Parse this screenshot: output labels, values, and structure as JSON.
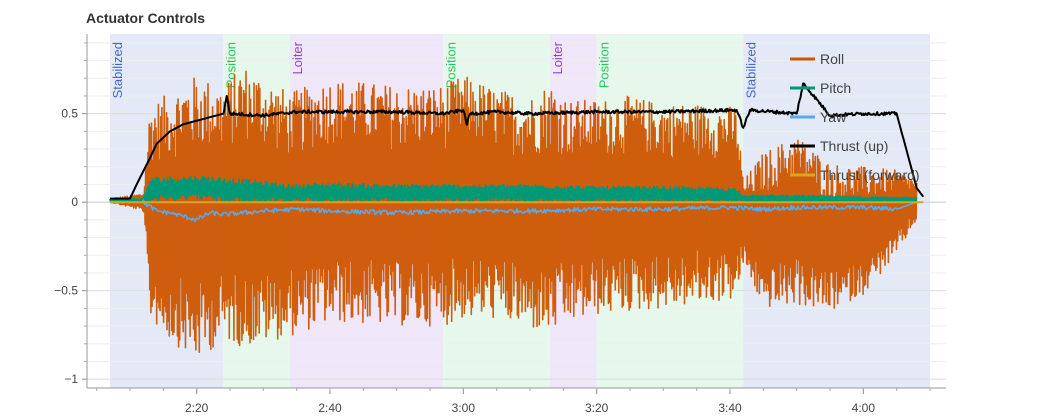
{
  "chart_data": {
    "type": "line",
    "title": "Actuator Controls",
    "xlabel": "",
    "ylabel": "",
    "x_unit": "m:ss",
    "xlim": [
      "2:07",
      "4:10"
    ],
    "ylim": [
      -1.05,
      0.95
    ],
    "x_ticks": [
      "2:20",
      "2:40",
      "3:00",
      "3:20",
      "3:40",
      "4:00"
    ],
    "y_ticks": [
      {
        "value": 0.5,
        "label": "0.5"
      },
      {
        "value": 0,
        "label": "0"
      },
      {
        "value": -0.5,
        "label": "−0.5"
      },
      {
        "value": -1,
        "label": "−1"
      }
    ],
    "grid": true,
    "legend_position": "top-right",
    "flight_modes": [
      {
        "name": "Stabilized",
        "start": "2:07",
        "end": "2:24",
        "color": "#4466cc",
        "fill": "#e3e9f7"
      },
      {
        "name": "Position",
        "start": "2:24",
        "end": "2:34",
        "color": "#22cc55",
        "fill": "#e6f8ec"
      },
      {
        "name": "Loiter",
        "start": "2:34",
        "end": "2:57",
        "color": "#8844cc",
        "fill": "#efe6fa"
      },
      {
        "name": "Position",
        "start": "2:57",
        "end": "3:13",
        "color": "#22cc55",
        "fill": "#e6f8ec"
      },
      {
        "name": "Loiter",
        "start": "3:13",
        "end": "3:20",
        "color": "#8844cc",
        "fill": "#efe6fa"
      },
      {
        "name": "Position",
        "start": "3:20",
        "end": "3:42",
        "color": "#22cc55",
        "fill": "#e6f8ec"
      },
      {
        "name": "Stabilized",
        "start": "3:42",
        "end": "4:10",
        "color": "#4466cc",
        "fill": "#e3e9f7"
      }
    ],
    "series": [
      {
        "name": "Roll",
        "color": "#cc5500",
        "x": [
          "2:07",
          "2:12",
          "2:13",
          "2:16",
          "2:20",
          "2:24",
          "2:27",
          "2:34",
          "2:40",
          "2:50",
          "2:57",
          "3:00",
          "3:05",
          "3:10",
          "3:13",
          "3:16",
          "3:20",
          "3:25",
          "3:30",
          "3:35",
          "3:41",
          "3:42",
          "3:45",
          "3:50",
          "3:55",
          "4:00",
          "4:05",
          "4:08"
        ],
        "y_upper": [
          0.02,
          0.05,
          0.55,
          0.62,
          0.72,
          0.66,
          0.78,
          0.62,
          0.7,
          0.66,
          0.66,
          0.72,
          0.64,
          0.6,
          0.68,
          0.58,
          0.58,
          0.6,
          0.56,
          0.56,
          0.54,
          0.12,
          0.28,
          0.38,
          0.22,
          0.2,
          0.18,
          0.12
        ],
        "y_lower": [
          0.0,
          -0.05,
          -0.66,
          -0.78,
          -0.9,
          -0.78,
          -0.82,
          -0.76,
          -0.68,
          -0.7,
          -0.7,
          -0.66,
          -0.66,
          -0.72,
          -0.74,
          -0.68,
          -0.64,
          -0.62,
          -0.6,
          -0.58,
          -0.55,
          -0.35,
          -0.6,
          -0.58,
          -0.62,
          -0.52,
          -0.3,
          -0.1
        ]
      },
      {
        "name": "Pitch",
        "color": "#009977",
        "x": [
          "2:07",
          "2:12",
          "2:13",
          "2:20",
          "2:24",
          "2:30",
          "2:34",
          "2:40",
          "2:50",
          "3:00",
          "3:10",
          "3:20",
          "3:30",
          "3:41",
          "3:42",
          "3:50",
          "4:00",
          "4:08"
        ],
        "y_upper": [
          0.02,
          0.02,
          0.14,
          0.15,
          0.14,
          0.12,
          0.1,
          0.11,
          0.1,
          0.1,
          0.1,
          0.09,
          0.09,
          0.08,
          0.04,
          0.04,
          0.03,
          0.03
        ],
        "y_lower": [
          0.0,
          0.0,
          0.0,
          0.02,
          0.0,
          0.0,
          0.0,
          0.0,
          0.0,
          0.0,
          0.0,
          0.0,
          0.0,
          0.0,
          0.0,
          0.0,
          0.0,
          0.0
        ]
      },
      {
        "name": "Yaw",
        "color": "#55aaee",
        "x": [
          "2:07",
          "2:12",
          "2:14",
          "2:16",
          "2:18",
          "2:20",
          "2:22",
          "2:24",
          "2:30",
          "2:35",
          "2:40",
          "2:50",
          "3:00",
          "3:10",
          "3:20",
          "3:30",
          "3:40",
          "3:45",
          "3:50",
          "4:00",
          "4:05",
          "4:08"
        ],
        "y": [
          0.0,
          0.0,
          -0.05,
          -0.06,
          -0.08,
          -0.1,
          -0.06,
          -0.07,
          -0.05,
          -0.04,
          -0.05,
          -0.06,
          -0.05,
          -0.05,
          -0.04,
          -0.04,
          -0.03,
          -0.04,
          -0.03,
          -0.03,
          -0.04,
          0.0
        ]
      },
      {
        "name": "Thrust (up)",
        "color": "#000000",
        "x": [
          "2:07",
          "2:10",
          "2:11",
          "2:13",
          "2:14",
          "2:16",
          "2:18",
          "2:20",
          "2:22",
          "2:24",
          "2:24.5",
          "2:25",
          "2:30",
          "2:35",
          "2:40",
          "2:50",
          "2:57",
          "3:00",
          "3:00.5",
          "3:01",
          "3:05",
          "3:10",
          "3:20",
          "3:30",
          "3:41",
          "3:42",
          "3:43",
          "3:50",
          "3:51",
          "3:55",
          "4:00",
          "4:05",
          "4:08",
          "4:09"
        ],
        "y": [
          0.02,
          0.02,
          0.1,
          0.25,
          0.33,
          0.4,
          0.44,
          0.46,
          0.48,
          0.5,
          0.6,
          0.5,
          0.49,
          0.51,
          0.51,
          0.51,
          0.5,
          0.52,
          0.44,
          0.5,
          0.51,
          0.5,
          0.51,
          0.51,
          0.52,
          0.42,
          0.52,
          0.5,
          0.67,
          0.49,
          0.5,
          0.5,
          0.08,
          0.03
        ]
      },
      {
        "name": "Thrust (forward)",
        "color": "#d6a620",
        "x": [
          "2:07",
          "4:09"
        ],
        "y": [
          0.0,
          0.0
        ]
      }
    ]
  }
}
